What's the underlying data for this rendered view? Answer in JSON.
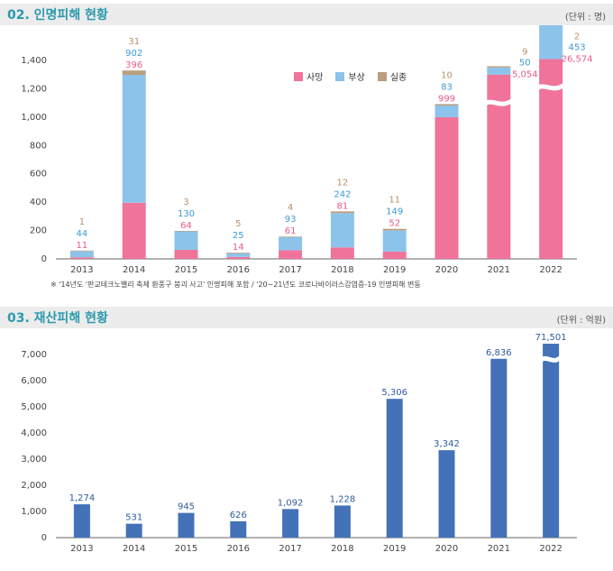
{
  "section1": {
    "title": "02. 인명피해 현황",
    "unit": "(단위 : 명)"
  },
  "section2": {
    "title": "03. 재산피해 현황",
    "unit": "(단위 : 억원)"
  },
  "note": "※ '14년도 '판교테크노밸리 축제 환풍구 붕괴 사고' 인명피해 포함 / '20~21년도 코로나바이러스감염증-19 인명피해 변동",
  "legend": [
    {
      "name": "사망",
      "color": "#f0739a"
    },
    {
      "name": "부상",
      "color": "#8cc3ea"
    },
    {
      "name": "실종",
      "color": "#bb9e7e"
    }
  ],
  "chart_data": [
    {
      "type": "bar",
      "stacked": true,
      "categories": [
        "2013",
        "2014",
        "2015",
        "2016",
        "2017",
        "2018",
        "2019",
        "2020",
        "2021",
        "2022"
      ],
      "series": [
        {
          "name": "사망",
          "color": "#f0739a",
          "values": [
            11,
            396,
            64,
            14,
            61,
            81,
            52,
            999,
            5054,
            26574
          ]
        },
        {
          "name": "부상",
          "color": "#8cc3ea",
          "values": [
            44,
            902,
            130,
            25,
            93,
            242,
            149,
            83,
            50,
            453
          ]
        },
        {
          "name": "실종",
          "color": "#bb9e7e",
          "values": [
            1,
            31,
            3,
            5,
            4,
            12,
            11,
            10,
            9,
            2
          ]
        }
      ],
      "yticks": [
        0,
        200,
        400,
        600,
        800,
        1000,
        1200,
        1400
      ],
      "ytick_labels": [
        "0",
        "200",
        "400",
        "600",
        "800",
        "1,000",
        "1,200",
        "1,400"
      ],
      "ylim": [
        0,
        1500
      ],
      "data_labels": {
        "2013": {
          "missing": "1",
          "injured": "44",
          "dead": "11"
        },
        "2014": {
          "missing": "31",
          "injured": "902",
          "dead": "396"
        },
        "2015": {
          "missing": "3",
          "injured": "130",
          "dead": "64"
        },
        "2016": {
          "missing": "5",
          "injured": "25",
          "dead": "14"
        },
        "2017": {
          "missing": "4",
          "injured": "93",
          "dead": "61"
        },
        "2018": {
          "missing": "12",
          "injured": "242",
          "dead": "81"
        },
        "2019": {
          "missing": "11",
          "injured": "149",
          "dead": "52"
        },
        "2020": {
          "missing": "10",
          "injured": "83",
          "dead": "999"
        },
        "2021": {
          "missing": "9",
          "injured": "50",
          "dead": "5,054"
        },
        "2022": {
          "missing": "2",
          "injured": "453",
          "dead": "26,574"
        }
      },
      "axis_breaks": [
        "2021",
        "2022"
      ],
      "legend_position": "top-center",
      "grid": false
    },
    {
      "type": "bar",
      "categories": [
        "2013",
        "2014",
        "2015",
        "2016",
        "2017",
        "2018",
        "2019",
        "2020",
        "2021",
        "2022"
      ],
      "values": [
        1274,
        531,
        945,
        626,
        1092,
        1228,
        5306,
        3342,
        6836,
        71501
      ],
      "value_labels": [
        "1,274",
        "531",
        "945",
        "626",
        "1,092",
        "1,228",
        "5,306",
        "3,342",
        "6,836",
        "71,501"
      ],
      "color": "#4472b8",
      "label_color": "#2f5b9e",
      "yticks": [
        0,
        1000,
        2000,
        3000,
        4000,
        5000,
        6000,
        7000
      ],
      "ytick_labels": [
        "0",
        "1,000",
        "2,000",
        "3,000",
        "4,000",
        "5,000",
        "6,000",
        "7,000"
      ],
      "ylim": [
        0,
        7000
      ],
      "axis_breaks": [
        "2022"
      ],
      "grid": false
    }
  ]
}
